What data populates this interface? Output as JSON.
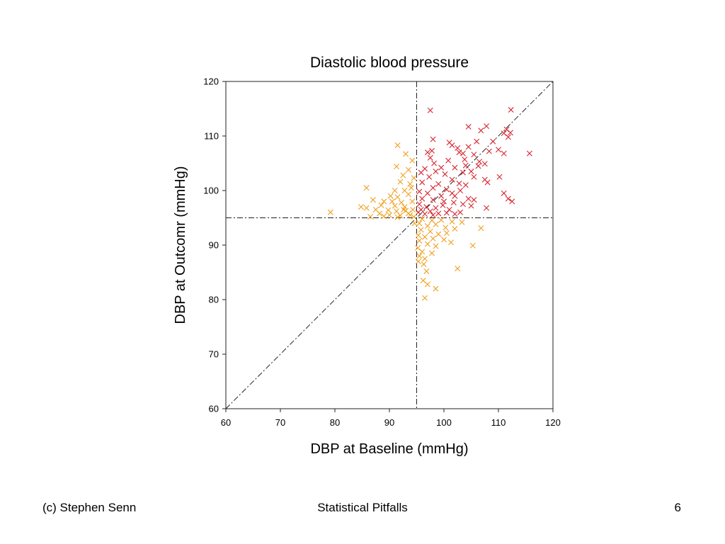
{
  "footer": {
    "author": "(c) Stephen Senn",
    "title": "Statistical Pitfalls",
    "page_number": "6"
  },
  "chart_data": {
    "type": "scatter",
    "title": "Diastolic blood pressure",
    "xlabel": "DBP at Baseline (mmHg)",
    "ylabel": "DBP at Outcomr (mmHg)",
    "xlim": [
      60,
      120
    ],
    "ylim": [
      60,
      120
    ],
    "xticks": [
      60,
      70,
      80,
      90,
      100,
      110,
      120
    ],
    "yticks": [
      60,
      70,
      80,
      90,
      100,
      110,
      120
    ],
    "grid": false,
    "marker": "x",
    "reference_lines": {
      "vertical_x": 95,
      "horizontal_y": 95,
      "identity": [
        [
          60,
          60
        ],
        [
          120,
          120
        ]
      ],
      "style": "dash-dot"
    },
    "series": [
      {
        "color": "#d7262f",
        "points": [
          [
            97.5,
            114.7
          ],
          [
            112.3,
            114.8
          ],
          [
            104.5,
            111.7
          ],
          [
            107.8,
            111.8
          ],
          [
            111.5,
            111.2
          ],
          [
            106.8,
            111.0
          ],
          [
            111.0,
            110.5
          ],
          [
            112.2,
            110.6
          ],
          [
            111.8,
            109.8
          ],
          [
            98.0,
            109.4
          ],
          [
            106.0,
            109.0
          ],
          [
            109.0,
            109.0
          ],
          [
            101.0,
            108.8
          ],
          [
            101.5,
            108.3
          ],
          [
            102.5,
            107.8
          ],
          [
            104.5,
            108.0
          ],
          [
            108.3,
            107.2
          ],
          [
            110.0,
            107.5
          ],
          [
            97.0,
            107.0
          ],
          [
            97.8,
            107.3
          ],
          [
            102.8,
            107.0
          ],
          [
            103.5,
            106.8
          ],
          [
            105.5,
            106.6
          ],
          [
            111.0,
            106.8
          ],
          [
            115.7,
            106.8
          ],
          [
            97.5,
            106.0
          ],
          [
            100.8,
            105.5
          ],
          [
            103.8,
            105.7
          ],
          [
            106.5,
            105.3
          ],
          [
            107.5,
            104.9
          ],
          [
            98.2,
            105.0
          ],
          [
            99.5,
            104.2
          ],
          [
            102.0,
            104.2
          ],
          [
            104.0,
            104.6
          ],
          [
            106.3,
            104.5
          ],
          [
            96.5,
            104.0
          ],
          [
            98.5,
            103.5
          ],
          [
            100.2,
            103.0
          ],
          [
            103.5,
            103.3
          ],
          [
            105.0,
            103.5
          ],
          [
            95.8,
            103.3
          ],
          [
            97.3,
            102.5
          ],
          [
            101.5,
            102.0
          ],
          [
            105.5,
            102.5
          ],
          [
            107.5,
            102.0
          ],
          [
            110.2,
            102.5
          ],
          [
            108.0,
            101.5
          ],
          [
            96.0,
            101.5
          ],
          [
            99.0,
            101.2
          ],
          [
            102.8,
            101.3
          ],
          [
            104.0,
            101.0
          ],
          [
            98.0,
            100.5
          ],
          [
            100.5,
            100.2
          ],
          [
            103.0,
            100.0
          ],
          [
            101.5,
            99.5
          ],
          [
            111.0,
            99.5
          ],
          [
            95.5,
            99.8
          ],
          [
            97.0,
            99.5
          ],
          [
            99.5,
            99.0
          ],
          [
            102.0,
            99.0
          ],
          [
            104.5,
            98.5
          ],
          [
            105.5,
            98.3
          ],
          [
            111.8,
            98.5
          ],
          [
            112.5,
            98.0
          ],
          [
            96.0,
            98.5
          ],
          [
            98.0,
            98.3
          ],
          [
            100.0,
            98.0
          ],
          [
            101.8,
            97.8
          ],
          [
            103.5,
            97.5
          ],
          [
            95.5,
            97.5
          ],
          [
            96.8,
            97.0
          ],
          [
            98.5,
            96.8
          ],
          [
            99.8,
            97.3
          ],
          [
            101.0,
            96.5
          ],
          [
            105.0,
            97.2
          ],
          [
            107.8,
            96.8
          ],
          [
            95.8,
            96.5
          ],
          [
            97.5,
            96.2
          ],
          [
            99.0,
            95.8
          ],
          [
            100.5,
            95.9
          ],
          [
            102.0,
            95.7
          ],
          [
            103.0,
            96.0
          ],
          [
            96.5,
            95.7
          ],
          [
            98.0,
            95.5
          ],
          [
            95.3,
            96.0
          ]
        ]
      },
      {
        "color": "#f0a020",
        "points": [
          [
            91.5,
            108.3
          ],
          [
            93.0,
            106.7
          ],
          [
            94.2,
            105.5
          ],
          [
            91.3,
            104.4
          ],
          [
            93.5,
            103.8
          ],
          [
            92.5,
            102.8
          ],
          [
            94.5,
            102.3
          ],
          [
            92.0,
            101.6
          ],
          [
            93.8,
            101.2
          ],
          [
            85.8,
            100.5
          ],
          [
            91.0,
            100.0
          ],
          [
            92.8,
            100.0
          ],
          [
            94.0,
            100.5
          ],
          [
            90.2,
            99.0
          ],
          [
            91.5,
            98.8
          ],
          [
            93.5,
            99.3
          ],
          [
            87.0,
            98.3
          ],
          [
            89.0,
            98.0
          ],
          [
            90.5,
            98.0
          ],
          [
            92.2,
            97.8
          ],
          [
            94.2,
            98.0
          ],
          [
            88.5,
            97.3
          ],
          [
            91.0,
            97.2
          ],
          [
            92.8,
            97.0
          ],
          [
            84.8,
            97.0
          ],
          [
            85.8,
            96.8
          ],
          [
            87.5,
            96.5
          ],
          [
            89.8,
            96.4
          ],
          [
            91.3,
            96.2
          ],
          [
            93.0,
            96.3
          ],
          [
            94.3,
            96.5
          ],
          [
            79.2,
            96.0
          ],
          [
            88.2,
            95.8
          ],
          [
            90.0,
            95.5
          ],
          [
            92.0,
            95.4
          ],
          [
            93.8,
            95.5
          ],
          [
            86.5,
            95.2
          ],
          [
            89.0,
            95.3
          ],
          [
            91.5,
            95.1
          ],
          [
            94.5,
            95.2
          ],
          [
            96.0,
            94.8
          ],
          [
            97.8,
            94.5
          ],
          [
            99.5,
            94.6
          ],
          [
            101.5,
            94.3
          ],
          [
            103.3,
            94.2
          ],
          [
            95.5,
            94.0
          ],
          [
            97.0,
            93.5
          ],
          [
            98.5,
            93.8
          ],
          [
            100.3,
            93.2
          ],
          [
            102.0,
            93.0
          ],
          [
            95.8,
            92.8
          ],
          [
            97.5,
            92.5
          ],
          [
            99.0,
            92.0
          ],
          [
            100.5,
            92.2
          ],
          [
            106.8,
            93.1
          ],
          [
            95.3,
            91.8
          ],
          [
            96.5,
            91.5
          ],
          [
            98.0,
            91.2
          ],
          [
            100.0,
            91.0
          ],
          [
            101.3,
            90.5
          ],
          [
            95.5,
            90.8
          ],
          [
            97.0,
            90.2
          ],
          [
            98.5,
            89.8
          ],
          [
            105.3,
            89.9
          ],
          [
            95.2,
            89.5
          ],
          [
            96.0,
            88.8
          ],
          [
            97.8,
            88.5
          ],
          [
            95.5,
            88.0
          ],
          [
            96.5,
            87.5
          ],
          [
            95.3,
            87.0
          ],
          [
            96.3,
            86.5
          ],
          [
            102.5,
            85.7
          ],
          [
            96.8,
            85.2
          ],
          [
            96.2,
            83.5
          ],
          [
            97.0,
            82.8
          ],
          [
            98.5,
            82.0
          ],
          [
            96.5,
            80.3
          ],
          [
            94.6,
            94.0
          ],
          [
            93.5,
            95.8
          ],
          [
            92.6,
            96.5
          ]
        ]
      }
    ]
  }
}
